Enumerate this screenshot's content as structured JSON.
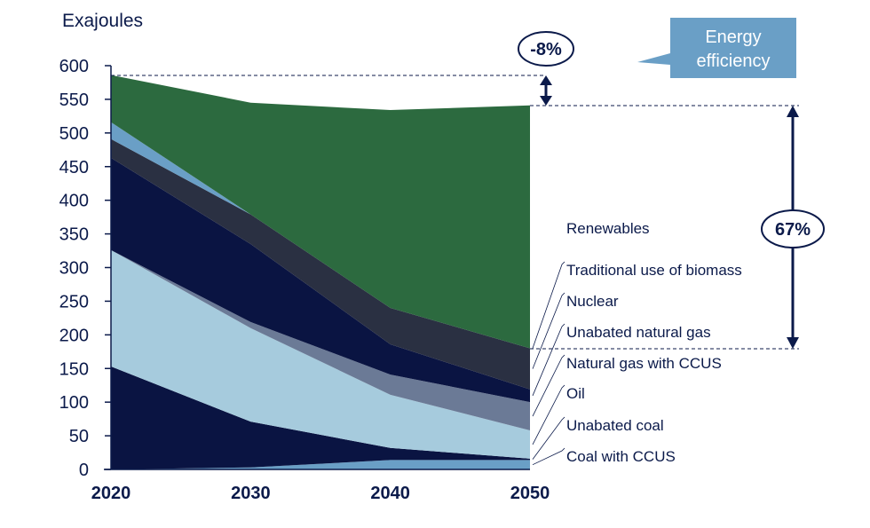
{
  "chart_data": {
    "type": "area",
    "stacked": true,
    "ylabel": "Exajoules",
    "xlabel": "",
    "x": [
      2020,
      2030,
      2040,
      2050
    ],
    "ylim": [
      0,
      600
    ],
    "yticks": [
      0,
      50,
      100,
      150,
      200,
      250,
      300,
      350,
      400,
      450,
      500,
      550,
      600
    ],
    "grid": false,
    "legend_placement": "right",
    "series": [
      {
        "name": "Coal with CCUS",
        "color": "#6a9fc6",
        "values": [
          0,
          3,
          14,
          14
        ]
      },
      {
        "name": "Unabated coal",
        "color": "#0a1442",
        "values": [
          153,
          68,
          18,
          2
        ]
      },
      {
        "name": "Oil",
        "color": "#a6cbdd",
        "values": [
          173,
          139,
          79,
          42
        ]
      },
      {
        "name": "Natural gas with CCUS",
        "color": "#6b7a96",
        "values": [
          0,
          9,
          30,
          42
        ]
      },
      {
        "name": "Unabated natural gas",
        "color": "#0a1442",
        "values": [
          137,
          116,
          45,
          19
        ]
      },
      {
        "name": "Nuclear",
        "color": "#2a3042",
        "values": [
          28,
          44,
          54,
          61
        ]
      },
      {
        "name": "Traditional use of biomass",
        "color": "#6a9fc6",
        "values": [
          25,
          0,
          0,
          0
        ]
      },
      {
        "name": "Renewables",
        "color": "#2c6a3f",
        "values": [
          70,
          166,
          294,
          361
        ]
      }
    ],
    "annotations": {
      "efficiency_change": "-8%",
      "efficiency_label_line1": "Energy",
      "efficiency_label_line2": "efficiency",
      "efficiency_color": "#6a9fc6",
      "renewables_share": "67%"
    }
  }
}
